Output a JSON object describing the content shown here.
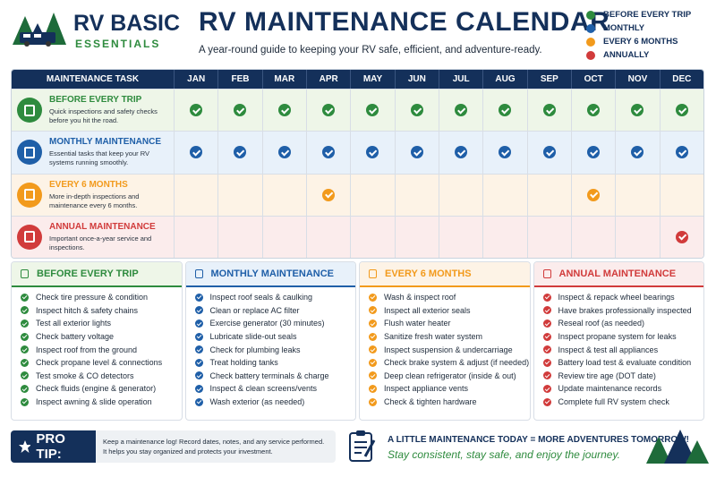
{
  "logo": {
    "line1": "RV BASIC",
    "line2": "ESSENTIALS"
  },
  "header": {
    "title": "RV MAINTENANCE CALENDAR",
    "subtitle": "A year-round guide to keeping your RV safe, efficient, and adventure-ready."
  },
  "legend": [
    {
      "label": "BEFORE EVERY TRIP",
      "color": "#2e8b3e"
    },
    {
      "label": "MONTHLY",
      "color": "#1f5fa8"
    },
    {
      "label": "EVERY 6 MONTHS",
      "color": "#f29a1c"
    },
    {
      "label": "ANNUALLY",
      "color": "#d13b3b"
    }
  ],
  "calendar": {
    "task_header": "MAINTENANCE TASK",
    "months": [
      "JAN",
      "FEB",
      "MAR",
      "APR",
      "MAY",
      "JUN",
      "JUL",
      "AUG",
      "SEP",
      "OCT",
      "NOV",
      "DEC"
    ],
    "rows": [
      {
        "title": "BEFORE EVERY TRIP",
        "description": "Quick inspections and safety checks before you hit the road.",
        "color": "#2e8b3e",
        "background": "#eef6e8",
        "checks": [
          true,
          true,
          true,
          true,
          true,
          true,
          true,
          true,
          true,
          true,
          true,
          true
        ]
      },
      {
        "title": "MONTHLY MAINTENANCE",
        "description": "Essential tasks that keep your RV systems running smoothly.",
        "color": "#1f5fa8",
        "background": "#e8f1fa",
        "checks": [
          true,
          true,
          true,
          true,
          true,
          true,
          true,
          true,
          true,
          true,
          true,
          true
        ]
      },
      {
        "title": "EVERY 6 MONTHS",
        "description": "More in-depth inspections and maintenance every 6 months.",
        "color": "#f29a1c",
        "background": "#fdf3e6",
        "checks": [
          false,
          false,
          false,
          true,
          false,
          false,
          false,
          false,
          false,
          true,
          false,
          false
        ]
      },
      {
        "title": "ANNUAL MAINTENANCE",
        "description": "Important once-a-year service and inspections.",
        "color": "#d13b3b",
        "background": "#fbecec",
        "checks": [
          false,
          false,
          false,
          false,
          false,
          false,
          false,
          false,
          false,
          false,
          false,
          true
        ]
      }
    ]
  },
  "lists": [
    {
      "title": "BEFORE EVERY TRIP",
      "color": "#2e8b3e",
      "background": "#eef6e8",
      "items": [
        "Check tire pressure & condition",
        "Inspect hitch & safety chains",
        "Test all exterior lights",
        "Check battery voltage",
        "Inspect roof from the ground",
        "Check propane level & connections",
        "Test smoke & CO detectors",
        "Check fluids (engine & generator)",
        "Inspect awning & slide operation"
      ]
    },
    {
      "title": "MONTHLY MAINTENANCE",
      "color": "#1f5fa8",
      "background": "#e8f1fa",
      "items": [
        "Inspect roof seals & caulking",
        "Clean or replace AC filter",
        "Exercise generator (30 minutes)",
        "Lubricate slide-out seals",
        "Check for plumbing leaks",
        "Treat holding tanks",
        "Check battery terminals & charge",
        "Inspect & clean screens/vents",
        "Wash exterior (as needed)"
      ]
    },
    {
      "title": "EVERY 6 MONTHS",
      "color": "#f29a1c",
      "background": "#fdf3e6",
      "items": [
        "Wash & inspect roof",
        "Inspect all exterior seals",
        "Flush water heater",
        "Sanitize fresh water system",
        "Inspect suspension & undercarriage",
        "Check brake system & adjust (if needed)",
        "Deep clean refrigerator (inside & out)",
        "Inspect appliance vents",
        "Check & tighten hardware"
      ]
    },
    {
      "title": "ANNUAL MAINTENANCE",
      "color": "#d13b3b",
      "background": "#fbecec",
      "items": [
        "Inspect & repack wheel bearings",
        "Have brakes professionally inspected",
        "Reseal roof (as needed)",
        "Inspect propane system for leaks",
        "Inspect & test all appliances",
        "Battery load test & evaluate condition",
        "Review tire age (DOT date)",
        "Update maintenance records",
        "Complete full RV system check"
      ]
    }
  ],
  "pro_tip": {
    "label": "PRO TIP:",
    "text": "Keep a maintenance log! Record dates, notes, and any service performed. It helps you stay organized and protects your investment."
  },
  "footer": {
    "headline": "A LITTLE MAINTENANCE TODAY = MORE ADVENTURES TOMORROW!",
    "tagline": "Stay consistent, stay safe, and enjoy the journey."
  }
}
